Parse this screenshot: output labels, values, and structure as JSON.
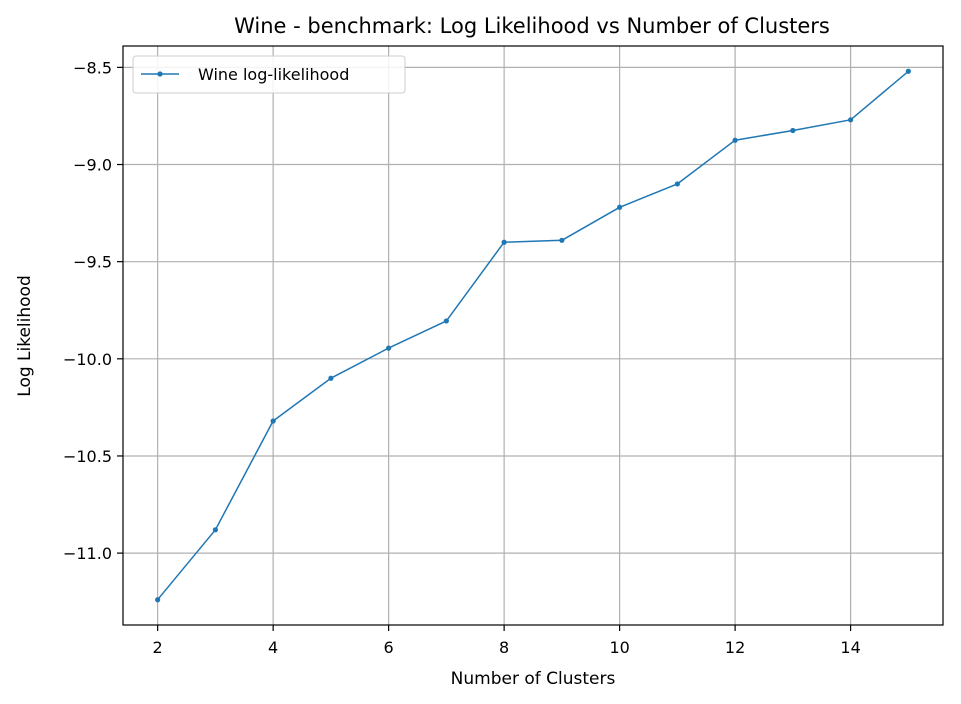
{
  "chart_data": {
    "type": "line",
    "title": "Wine - benchmark: Log Likelihood vs Number of Clusters",
    "xlabel": "Number of Clusters",
    "ylabel": "Log Likelihood",
    "xlim": [
      1.4,
      15.6
    ],
    "ylim": [
      -11.37,
      -8.39
    ],
    "xticks": [
      2,
      4,
      6,
      8,
      10,
      12,
      14
    ],
    "yticks": [
      -11.0,
      -10.5,
      -10.0,
      -9.5,
      -9.0,
      -8.5
    ],
    "xtick_labels": [
      "2",
      "4",
      "6",
      "8",
      "10",
      "12",
      "14"
    ],
    "ytick_labels": [
      "−11.0",
      "−10.5",
      "−10.0",
      "−9.5",
      "−9.0",
      "−8.5"
    ],
    "grid": true,
    "legend_position": "top-left",
    "series": [
      {
        "name": "Wine log-likelihood",
        "color": "#1f77b4",
        "x": [
          2,
          3,
          4,
          5,
          6,
          7,
          8,
          9,
          10,
          11,
          12,
          13,
          14,
          15
        ],
        "y": [
          -11.24,
          -10.88,
          -10.32,
          -10.1,
          -9.945,
          -9.805,
          -9.4,
          -9.39,
          -9.22,
          -9.1,
          -8.875,
          -8.825,
          -8.77,
          -8.52
        ]
      }
    ]
  }
}
